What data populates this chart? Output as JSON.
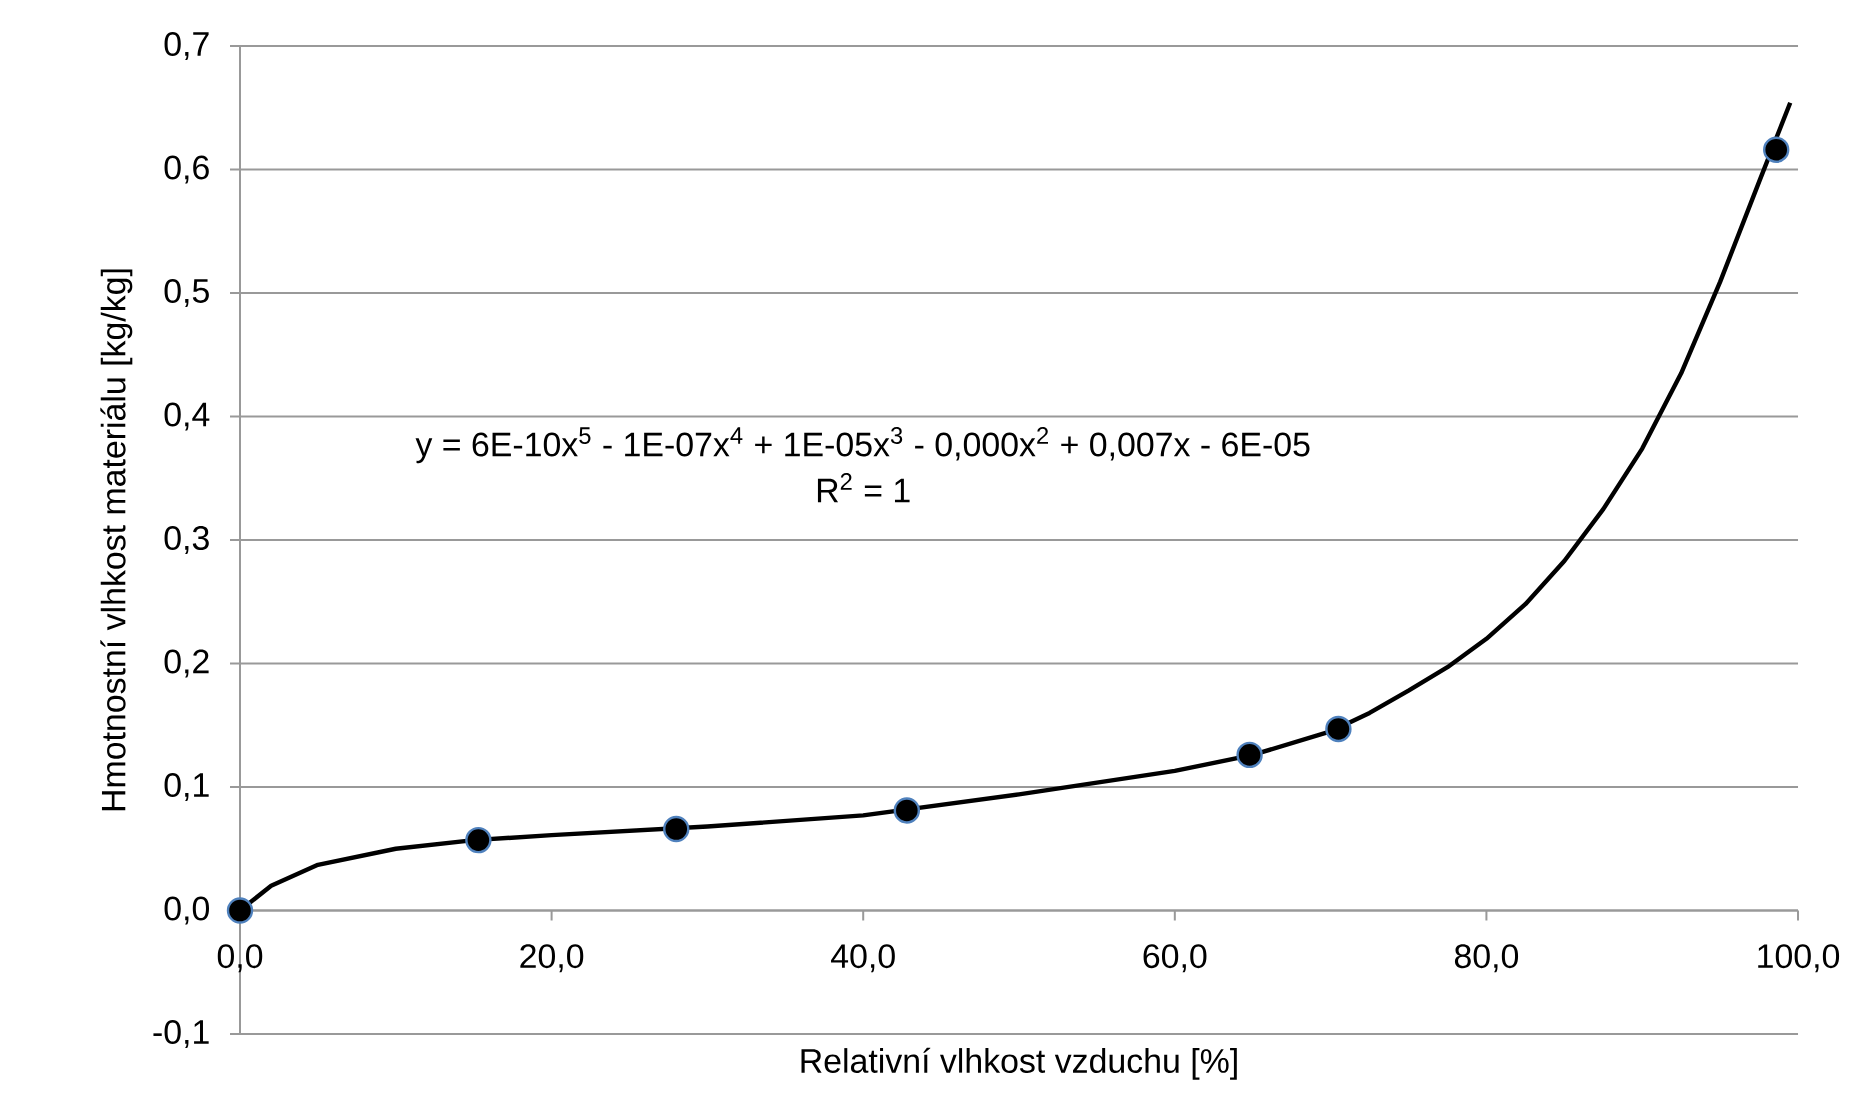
{
  "chart_data": {
    "type": "scatter",
    "xlabel": "Relativní vlhkost vzduchu [%]",
    "ylabel": "Hmotnostní vlhkost materiálu [kg/kg]",
    "annotations": [
      "y = 6E-10x$^{5}$ - 1E-07x$^{4}$ + 1E-05x$^{3}$ - 0,000x$^{2}$ + 0,007x - 6E-05",
      "R$^{2}$ = 1"
    ],
    "series": [
      {
        "type": "line",
        "color": "#000000",
        "marker": "none",
        "x": [
          0,
          2,
          5,
          10,
          15,
          20,
          30,
          40,
          50,
          60,
          65,
          70,
          72.5,
          75,
          77.5,
          80,
          82.5,
          85,
          87.5,
          90,
          92.5,
          95,
          97.5,
          99.5
        ],
        "values": [
          0,
          0.02,
          0.037,
          0.05,
          0.057,
          0.061,
          0.068,
          0.077,
          0.094,
          0.113,
          0.126,
          0.145,
          0.16,
          0.178,
          0.197,
          0.22,
          0.248,
          0.283,
          0.325,
          0.374,
          0.435,
          0.509,
          0.59,
          0.654
        ]
      },
      {
        "color": "#000000",
        "marker": "circle",
        "x": [
          0,
          15.3,
          28,
          42.8,
          64.8,
          70.5,
          98.6
        ],
        "values": [
          0,
          0.057,
          0.066,
          0.081,
          0.126,
          0.147,
          0.616
        ]
      }
    ],
    "xlim": [
      0,
      100
    ],
    "ylim": [
      -0.1,
      0.7
    ],
    "xticks": [
      {
        "value": 0,
        "label": "0,0"
      },
      {
        "value": 20,
        "label": "20,0"
      },
      {
        "value": 40,
        "label": "40,0"
      },
      {
        "value": 60,
        "label": "60,0"
      },
      {
        "value": 80,
        "label": "80,0"
      },
      {
        "value": 100,
        "label": "100,0"
      }
    ],
    "yticks": [
      {
        "value": -0.1,
        "label": "-0,1"
      },
      {
        "value": 0,
        "label": "0,0"
      },
      {
        "value": 0.1,
        "label": "0,1"
      },
      {
        "value": 0.2,
        "label": "0,2"
      },
      {
        "value": 0.3,
        "label": "0,3"
      },
      {
        "value": 0.4,
        "label": "0,4"
      },
      {
        "value": 0.5,
        "label": "0,5"
      },
      {
        "value": 0.6,
        "label": "0,6"
      },
      {
        "value": 0.7,
        "label": "0,7"
      }
    ],
    "grid": "y"
  }
}
